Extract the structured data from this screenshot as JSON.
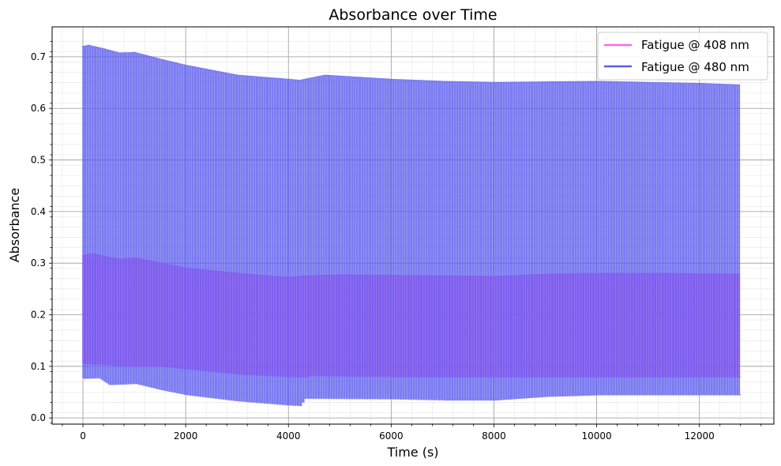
{
  "chart_data": {
    "type": "line",
    "title": "Absorbance over Time",
    "xlabel": "Time (s)",
    "ylabel": "Absorbance",
    "xlim": [
      -600,
      13450
    ],
    "ylim": [
      -0.012,
      0.758
    ],
    "x_ticks": [
      0,
      2000,
      4000,
      6000,
      8000,
      10000,
      12000
    ],
    "x_tick_labels": [
      "0",
      "2000",
      "4000",
      "6000",
      "8000",
      "10000",
      "12000"
    ],
    "y_ticks": [
      0.0,
      0.1,
      0.2,
      0.3,
      0.4,
      0.5,
      0.6,
      0.7
    ],
    "y_tick_labels": [
      "0.0",
      "0.1",
      "0.2",
      "0.3",
      "0.4",
      "0.5",
      "0.6",
      "0.7"
    ],
    "grid": "major and minor",
    "legend_position": "top-right",
    "cycle_period_s": 50,
    "series": [
      {
        "name": "Fatigue @ 408 nm",
        "color": "#ff66ee",
        "upper_envelope": {
          "x": [
            0,
            200,
            400,
            700,
            1000,
            1500,
            2000,
            3000,
            4000,
            4300,
            5000,
            6000,
            7000,
            8000,
            9000,
            10000,
            11000,
            12000,
            12800
          ],
          "y": [
            0.315,
            0.318,
            0.313,
            0.307,
            0.31,
            0.3,
            0.29,
            0.28,
            0.272,
            0.275,
            0.277,
            0.276,
            0.275,
            0.274,
            0.278,
            0.28,
            0.28,
            0.279,
            0.278
          ]
        },
        "lower_envelope": {
          "x": [
            0,
            500,
            800,
            1500,
            2000,
            3000,
            4000,
            4300,
            4400,
            6000,
            8000,
            10000,
            12000,
            12800
          ],
          "y": [
            0.105,
            0.103,
            0.1,
            0.1,
            0.095,
            0.085,
            0.08,
            0.08,
            0.082,
            0.08,
            0.08,
            0.08,
            0.08,
            0.08
          ]
        }
      },
      {
        "name": "Fatigue @ 480 nm",
        "color": "#5b5bed",
        "upper_envelope": {
          "x": [
            0,
            100,
            400,
            700,
            1000,
            1500,
            2000,
            3000,
            4000,
            4200,
            4700,
            6000,
            7000,
            8000,
            9000,
            10000,
            11000,
            12000,
            12800
          ],
          "y": [
            0.72,
            0.722,
            0.715,
            0.707,
            0.708,
            0.695,
            0.683,
            0.664,
            0.656,
            0.654,
            0.664,
            0.656,
            0.652,
            0.65,
            0.651,
            0.652,
            0.65,
            0.648,
            0.645
          ]
        },
        "lower_envelope": {
          "x": [
            0,
            300,
            500,
            1000,
            1500,
            2000,
            3000,
            4000,
            4200,
            4300,
            6000,
            7000,
            8000,
            9000,
            10000,
            12000,
            12800
          ],
          "y": [
            0.077,
            0.078,
            0.065,
            0.067,
            0.055,
            0.045,
            0.033,
            0.025,
            0.024,
            0.038,
            0.037,
            0.035,
            0.035,
            0.042,
            0.045,
            0.045,
            0.045
          ]
        }
      }
    ]
  }
}
